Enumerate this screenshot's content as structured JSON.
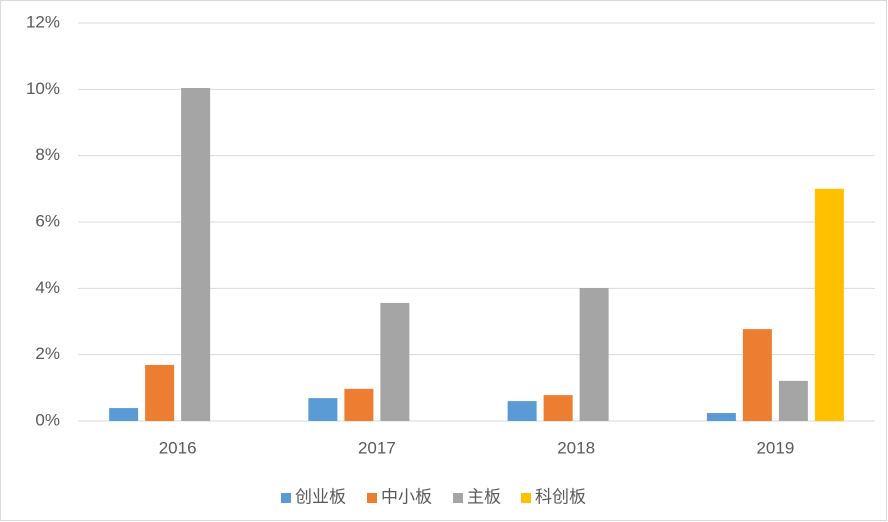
{
  "chart_data": {
    "type": "bar",
    "categories": [
      "2016",
      "2017",
      "2018",
      "2019"
    ],
    "series": [
      {
        "name": "创业板",
        "color": "#5b9bd5",
        "values": [
          0.39,
          0.69,
          0.6,
          0.24
        ]
      },
      {
        "name": "中小板",
        "color": "#ed7d31",
        "values": [
          1.69,
          0.97,
          0.78,
          2.77
        ]
      },
      {
        "name": "主板",
        "color": "#a5a5a5",
        "values": [
          10.04,
          3.56,
          4.01,
          1.21
        ]
      },
      {
        "name": "科创板",
        "color": "#ffc000",
        "values": [
          null,
          null,
          null,
          7.0
        ]
      }
    ],
    "ylim": [
      0,
      12
    ],
    "yticks": [
      {
        "value": 0,
        "label": "0%"
      },
      {
        "value": 2,
        "label": "2%"
      },
      {
        "value": 4,
        "label": "4%"
      },
      {
        "value": 6,
        "label": "6%"
      },
      {
        "value": 8,
        "label": "8%"
      },
      {
        "value": 10,
        "label": "10%"
      },
      {
        "value": 12,
        "label": "12%"
      }
    ],
    "grid": true,
    "legend": "bottom"
  }
}
